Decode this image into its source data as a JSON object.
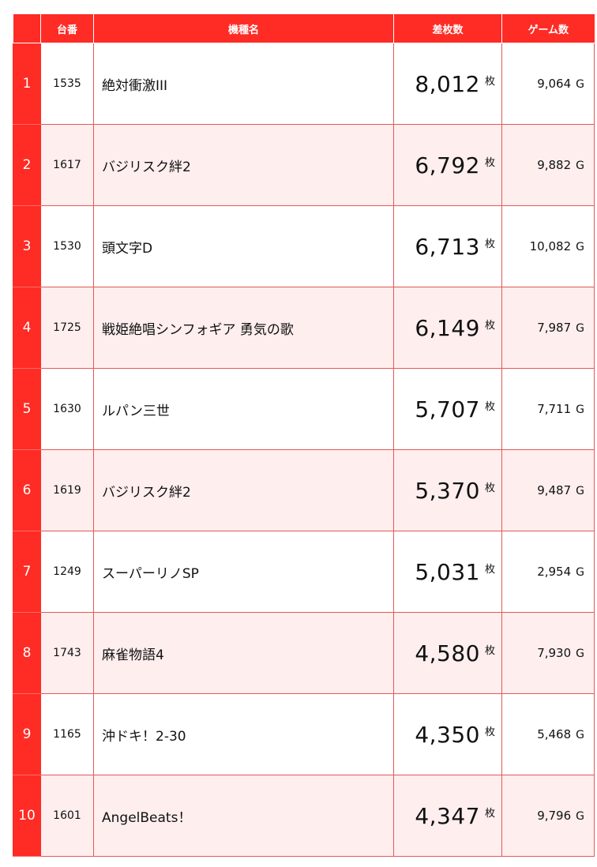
{
  "header": {
    "rank": "",
    "unit_no": "台番",
    "machine": "機種名",
    "difference": "差枚数",
    "games": "ゲーム数"
  },
  "units": {
    "coins": "枚",
    "games": "G"
  },
  "rows": [
    {
      "rank": "1",
      "unit": "1535",
      "machine": "絶対衝激III",
      "diff": "8,012",
      "games": "9,064"
    },
    {
      "rank": "2",
      "unit": "1617",
      "machine": "バジリスク絆2",
      "diff": "6,792",
      "games": "9,882"
    },
    {
      "rank": "3",
      "unit": "1530",
      "machine": "頭文字D",
      "diff": "6,713",
      "games": "10,082"
    },
    {
      "rank": "4",
      "unit": "1725",
      "machine": "戦姫絶唱シンフォギア 勇気の歌",
      "diff": "6,149",
      "games": "7,987"
    },
    {
      "rank": "5",
      "unit": "1630",
      "machine": "ルパン三世",
      "diff": "5,707",
      "games": "7,711"
    },
    {
      "rank": "6",
      "unit": "1619",
      "machine": "バジリスク絆2",
      "diff": "5,370",
      "games": "9,487"
    },
    {
      "rank": "7",
      "unit": "1249",
      "machine": "スーパーリノSP",
      "diff": "5,031",
      "games": "2,954"
    },
    {
      "rank": "8",
      "unit": "1743",
      "machine": "麻雀物語4",
      "diff": "4,580",
      "games": "7,930"
    },
    {
      "rank": "9",
      "unit": "1165",
      "machine": "沖ドキ！2-30",
      "diff": "4,350",
      "games": "5,468"
    },
    {
      "rank": "10",
      "unit": "1601",
      "machine": "AngelBeats！",
      "diff": "4,347",
      "games": "9,796"
    }
  ],
  "colors": {
    "accent": "#ff2b25",
    "row_alt": "#ffeeee",
    "border": "#e05a57"
  }
}
